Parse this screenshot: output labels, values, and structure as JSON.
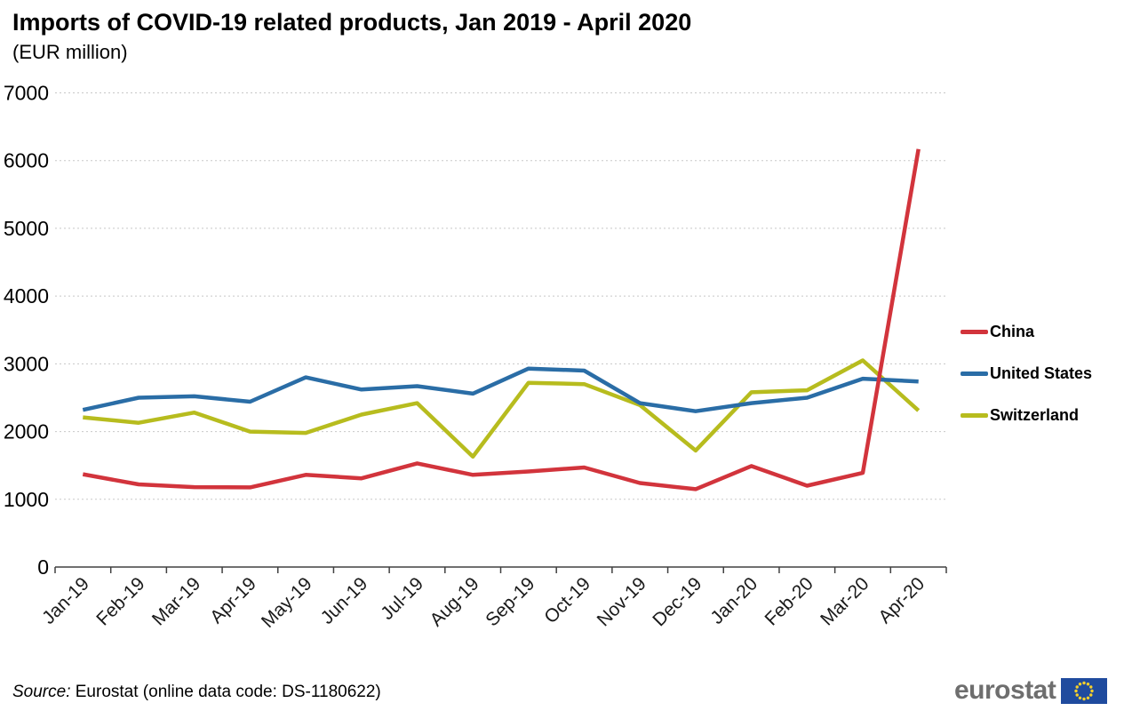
{
  "title": "Imports of COVID-19 related products, Jan 2019 - April 2020",
  "subtitle": "(EUR million)",
  "source": {
    "prefix": "Source:",
    "text": " Eurostat (online data code: DS-1180622)"
  },
  "logo": {
    "text": "eurostat"
  },
  "chart_data": {
    "type": "line",
    "title": "Imports of COVID-19 related products, Jan 2019 - April 2020",
    "subtitle": "(EUR million)",
    "categories": [
      "Jan-19",
      "Feb-19",
      "Mar-19",
      "Apr-19",
      "May-19",
      "Jun-19",
      "Jul-19",
      "Aug-19",
      "Sep-19",
      "Oct-19",
      "Nov-19",
      "Dec-19",
      "Jan-20",
      "Feb-20",
      "Mar-20",
      "Apr-20"
    ],
    "series": [
      {
        "name": "China",
        "color": "#d2343c",
        "values": [
          1370,
          1220,
          1180,
          1175,
          1360,
          1310,
          1530,
          1360,
          1410,
          1470,
          1240,
          1150,
          1490,
          1200,
          1390,
          6170
        ]
      },
      {
        "name": "United States",
        "color": "#2a6da6",
        "values": [
          2320,
          2500,
          2520,
          2440,
          2800,
          2620,
          2670,
          2560,
          2930,
          2900,
          2420,
          2300,
          2420,
          2500,
          2780,
          2740
        ]
      },
      {
        "name": "Switzerland",
        "color": "#b7bc1e",
        "values": [
          2210,
          2130,
          2280,
          2000,
          1980,
          2250,
          2420,
          1630,
          2720,
          2700,
          2390,
          1720,
          2580,
          2610,
          3050,
          2310
        ]
      }
    ],
    "xlabel": "",
    "ylabel": "",
    "ylim": [
      0,
      7000
    ],
    "ytick_step": 1000,
    "yticks": [
      0,
      1000,
      2000,
      3000,
      4000,
      5000,
      6000,
      7000
    ],
    "grid": "horizontal-dashed",
    "gridline_color": "#c8c8c8",
    "axis_color": "#404040",
    "legend_position": "right"
  }
}
